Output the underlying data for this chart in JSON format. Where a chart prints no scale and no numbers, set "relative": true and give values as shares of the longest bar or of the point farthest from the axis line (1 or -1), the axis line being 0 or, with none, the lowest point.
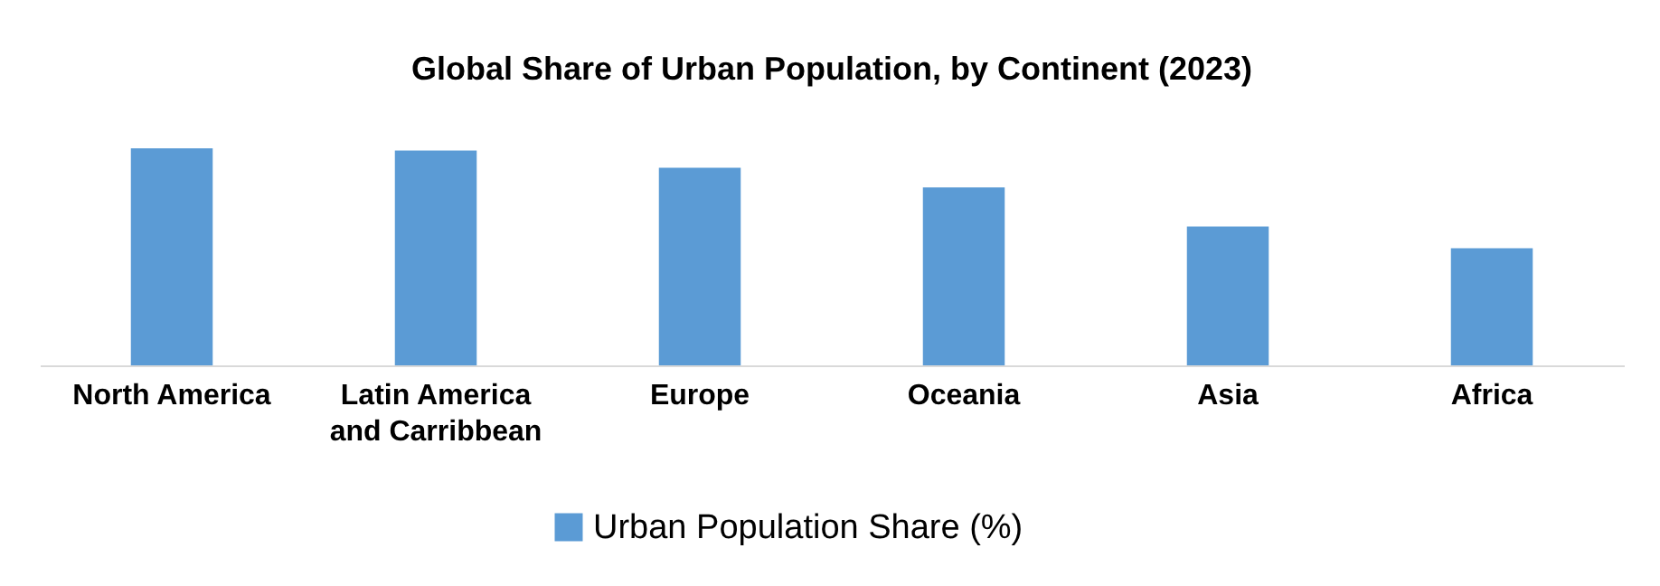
{
  "chart_data": {
    "type": "bar",
    "title": "Global Share of Urban Population, by Continent (2023)",
    "relative": true,
    "categories": [
      "North America",
      "Latin America and Carribbean",
      "Europe",
      "Oceania",
      "Asia",
      "Africa"
    ],
    "series": [
      {
        "name": "Urban Population Share (%)",
        "color": "#5b9bd5",
        "values": [
          1,
          0.99,
          0.91,
          0.82,
          0.64,
          0.54
        ]
      }
    ],
    "legend": "bottom"
  }
}
